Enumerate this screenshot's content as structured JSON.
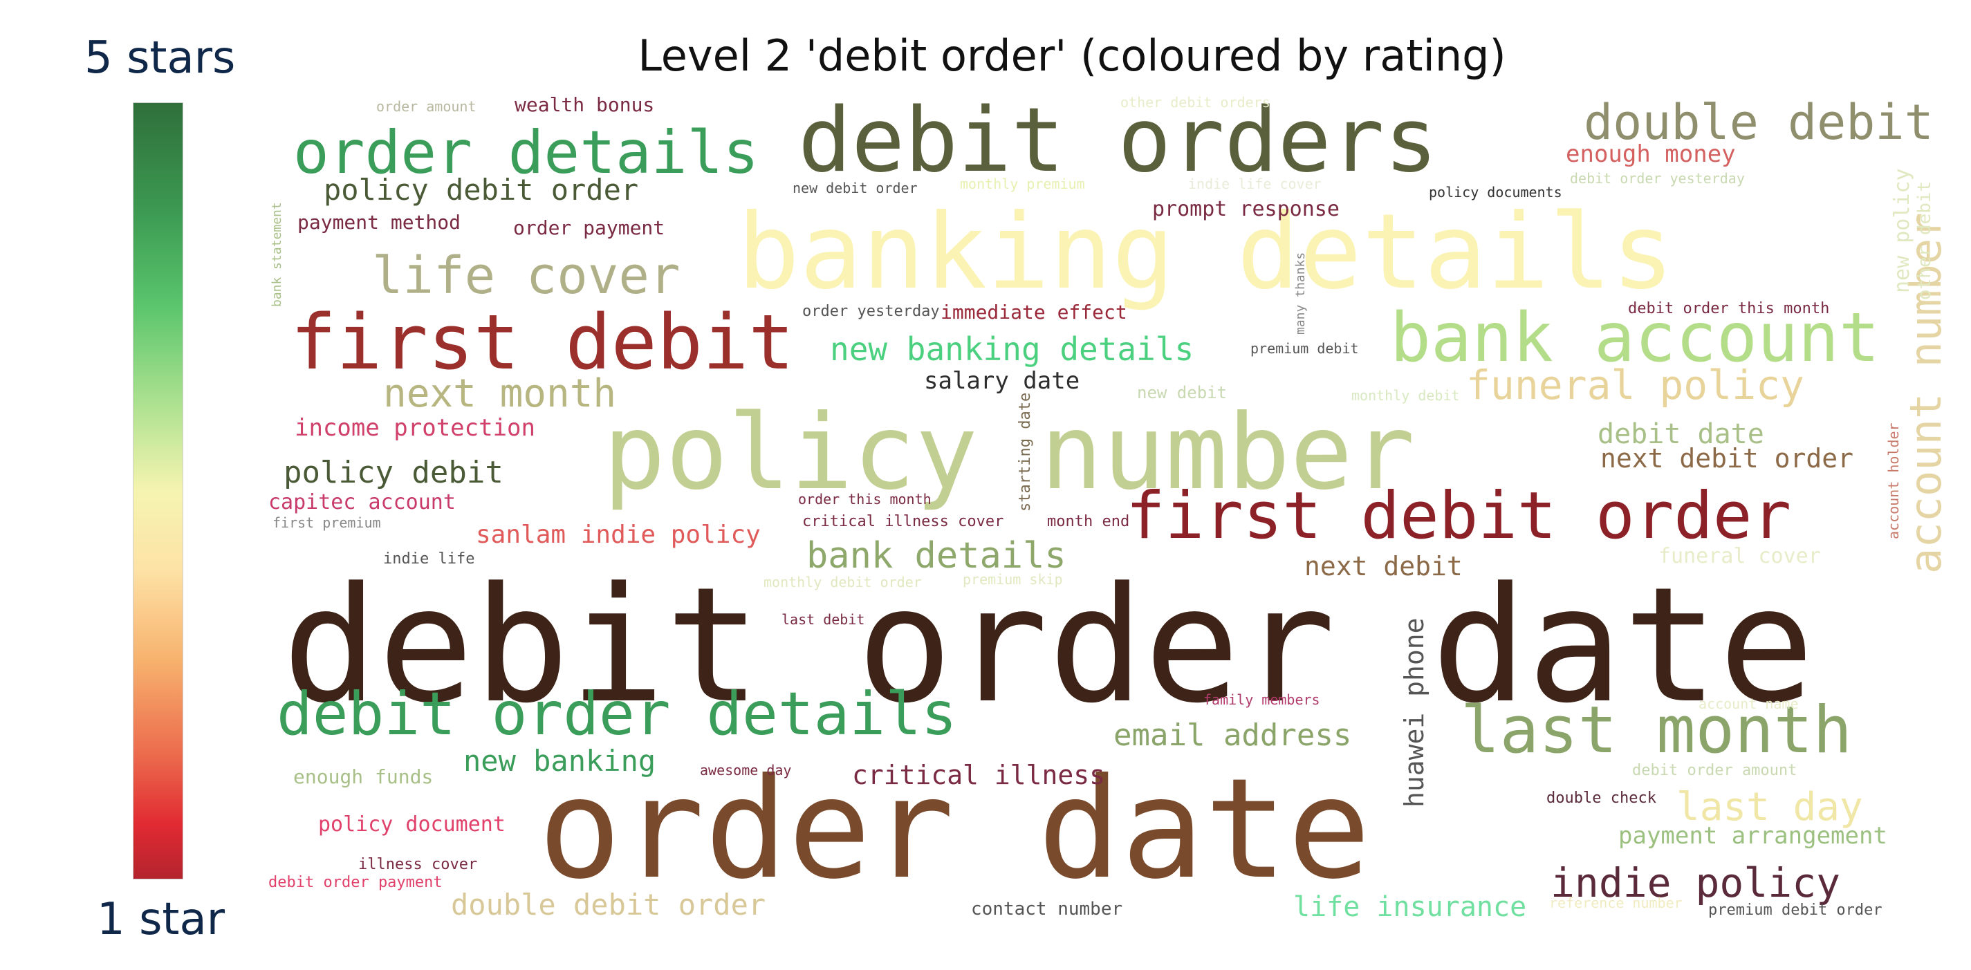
{
  "title": "Level 2 'debit order' (coloured by rating)",
  "scale": {
    "top_label": "5 stars",
    "bottom_label": "1 star",
    "gradient_colors": [
      "#2f6f3a",
      "#59c56c",
      "#f5f4b0",
      "#f7b16d",
      "#e12a32",
      "#b4242e"
    ]
  },
  "words": [
    {
      "text": "debit order date",
      "color": "#3e2418"
    },
    {
      "text": "order date",
      "color": "#7a4a2c"
    },
    {
      "text": "banking details",
      "color": "#faf3b3"
    },
    {
      "text": "policy number",
      "color": "#c2cf92"
    },
    {
      "text": "debit orders",
      "color": "#5a603c"
    },
    {
      "text": "first debit",
      "color": "#9a2f2b"
    },
    {
      "text": "first debit order",
      "color": "#8c2128"
    },
    {
      "text": "bank account",
      "color": "#b4dd8a"
    },
    {
      "text": "debit order details",
      "color": "#3a9d5a"
    },
    {
      "text": "order details",
      "color": "#3a9d5a"
    },
    {
      "text": "last month",
      "color": "#8aa46a"
    },
    {
      "text": "double debit",
      "color": "#8f8f6e"
    },
    {
      "text": "life cover",
      "color": "#b0b088"
    },
    {
      "text": "account number",
      "color": "#e6d5a4"
    },
    {
      "text": "funeral policy",
      "color": "#e8d49a"
    },
    {
      "text": "next month",
      "color": "#b7b580"
    },
    {
      "text": "new banking details",
      "color": "#4ad07e"
    },
    {
      "text": "bank details",
      "color": "#8da86a"
    },
    {
      "text": "policy debit order",
      "color": "#4a5a36"
    },
    {
      "text": "policy debit",
      "color": "#4a5a36"
    },
    {
      "text": "indie policy",
      "color": "#5a2a3a"
    },
    {
      "text": "email address",
      "color": "#8aa46a"
    },
    {
      "text": "double debit order",
      "color": "#d8c898"
    },
    {
      "text": "last day",
      "color": "#f0e6a6"
    },
    {
      "text": "payment arrangement",
      "color": "#9cc080"
    },
    {
      "text": "critical illness",
      "color": "#7a2a42"
    },
    {
      "text": "new banking",
      "color": "#3a9d5a"
    },
    {
      "text": "next debit",
      "color": "#8c6a48"
    },
    {
      "text": "debit date",
      "color": "#a8c088"
    },
    {
      "text": "next debit order",
      "color": "#8c6a48"
    },
    {
      "text": "salary date",
      "color": "#2e2e2e"
    },
    {
      "text": "life insurance",
      "color": "#6fe0a0"
    },
    {
      "text": "enough money",
      "color": "#d46060"
    },
    {
      "text": "income protection",
      "color": "#d0406a"
    },
    {
      "text": "sanlam indie policy",
      "color": "#e05a5a"
    },
    {
      "text": "capitec account",
      "color": "#c83a6a"
    },
    {
      "text": "policy document",
      "color": "#e0406a"
    },
    {
      "text": "enough funds",
      "color": "#a8c088"
    },
    {
      "text": "wealth bonus",
      "color": "#7a2a42"
    },
    {
      "text": "payment method",
      "color": "#7a2a42"
    },
    {
      "text": "order payment",
      "color": "#7a2a42"
    },
    {
      "text": "prompt response",
      "color": "#7a2a42"
    },
    {
      "text": "immediate effect",
      "color": "#9a2a3a"
    },
    {
      "text": "contact number",
      "color": "#555555"
    },
    {
      "text": "funeral cover",
      "color": "#e8ecc8"
    },
    {
      "text": "huawei phone",
      "color": "#555555"
    },
    {
      "text": "new policy",
      "color": "#e0e8c0"
    },
    {
      "text": "other debit",
      "color": "#e0e8c0"
    },
    {
      "text": "order amount",
      "color": "#b8b8a0"
    },
    {
      "text": "other debit orders",
      "color": "#e8ecc8"
    },
    {
      "text": "new debit order",
      "color": "#555555"
    },
    {
      "text": "monthly premium",
      "color": "#e8f0b0"
    },
    {
      "text": "indie life cover",
      "color": "#e8ecd8"
    },
    {
      "text": "policy documents",
      "color": "#333333"
    },
    {
      "text": "debit order yesterday",
      "color": "#c8d8b0"
    },
    {
      "text": "bank statement",
      "color": "#a8c088"
    },
    {
      "text": "many thanks",
      "color": "#888888"
    },
    {
      "text": "order yesterday",
      "color": "#555555"
    },
    {
      "text": "debit order this month",
      "color": "#7a2a42"
    },
    {
      "text": "premium debit",
      "color": "#555555"
    },
    {
      "text": "new debit",
      "color": "#c8d8b0"
    },
    {
      "text": "monthly debit",
      "color": "#d8e8c0"
    },
    {
      "text": "starting date",
      "color": "#7a6a50"
    },
    {
      "text": "order this month",
      "color": "#7a2a42"
    },
    {
      "text": "critical illness cover",
      "color": "#7a2a42"
    },
    {
      "text": "month end",
      "color": "#7a2a42"
    },
    {
      "text": "account holder",
      "color": "#c87a6a"
    },
    {
      "text": "first premium",
      "color": "#888888"
    },
    {
      "text": "indie life",
      "color": "#555555"
    },
    {
      "text": "monthly debit order",
      "color": "#e0e8c0"
    },
    {
      "text": "premium skip",
      "color": "#e0e8c0"
    },
    {
      "text": "last debit",
      "color": "#7a2a42"
    },
    {
      "text": "family members",
      "color": "#b03a6a"
    },
    {
      "text": "account name",
      "color": "#e8ecc8"
    },
    {
      "text": "awesome day",
      "color": "#7a2a42"
    },
    {
      "text": "debit order amount",
      "color": "#c8d8b0"
    },
    {
      "text": "double check",
      "color": "#5a2a3a"
    },
    {
      "text": "illness cover",
      "color": "#7a2a42"
    },
    {
      "text": "debit order payment",
      "color": "#e0406a"
    },
    {
      "text": "reference number",
      "color": "#f0ecc0"
    },
    {
      "text": "premium debit order",
      "color": "#555555"
    }
  ]
}
